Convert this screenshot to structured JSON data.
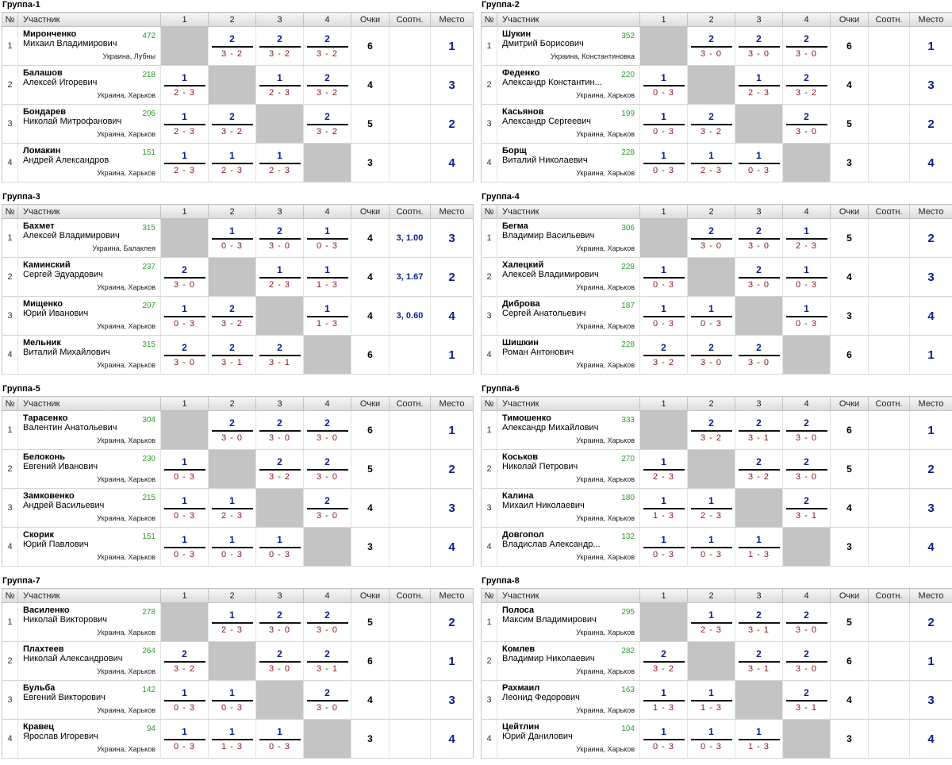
{
  "headers": {
    "num": "№",
    "player": "Участник",
    "c1": "1",
    "c2": "2",
    "c3": "3",
    "c4": "4",
    "points": "Очки",
    "ratio": "Соотн.",
    "place": "Место"
  },
  "groups": [
    {
      "title": "Группа-1",
      "rows": [
        {
          "num": "1",
          "name": "Мирonченко",
          "first": "Михаил Владимирович",
          "rating": "472",
          "city": "Украина, Лубны",
          "scores": [
            null,
            {
              "w": "2",
              "s": "3 - 2"
            },
            {
              "w": "2",
              "s": "3 - 2"
            },
            {
              "w": "2",
              "s": "3 - 2"
            }
          ],
          "points": "6",
          "ratio": "",
          "place": "1"
        },
        {
          "num": "2",
          "name": "Балашов",
          "first": "Алексей Игоревич",
          "rating": "218",
          "city": "Украина, Харьков",
          "scores": [
            {
              "w": "1",
              "s": "2 - 3"
            },
            null,
            {
              "w": "1",
              "s": "2 - 3"
            },
            {
              "w": "2",
              "s": "3 - 2"
            }
          ],
          "points": "4",
          "ratio": "",
          "place": "3"
        },
        {
          "num": "3",
          "name": "Бондарев",
          "first": "Николай Митрофанович",
          "rating": "206",
          "city": "Украина, Харьков",
          "scores": [
            {
              "w": "1",
              "s": "2 - 3"
            },
            {
              "w": "2",
              "s": "3 - 2"
            },
            null,
            {
              "w": "2",
              "s": "3 - 2"
            }
          ],
          "points": "5",
          "ratio": "",
          "place": "2"
        },
        {
          "num": "4",
          "name": "Ломакин",
          "first": "Андрей Александров",
          "rating": "151",
          "city": "Украина, Харьков",
          "scores": [
            {
              "w": "1",
              "s": "2 - 3"
            },
            {
              "w": "1",
              "s": "2 - 3"
            },
            {
              "w": "1",
              "s": "2 - 3"
            },
            null
          ],
          "points": "3",
          "ratio": "",
          "place": "4"
        }
      ]
    },
    {
      "title": "Группа-2",
      "rows": [
        {
          "num": "1",
          "name": "Шукин",
          "first": "Дмитрий Борисович",
          "rating": "352",
          "city": "Украина, Константиновка",
          "scores": [
            null,
            {
              "w": "2",
              "s": "3 - 0"
            },
            {
              "w": "2",
              "s": "3 - 0"
            },
            {
              "w": "2",
              "s": "3 - 0"
            }
          ],
          "points": "6",
          "ratio": "",
          "place": "1"
        },
        {
          "num": "2",
          "name": "Феденко",
          "first": "Александр Константин...",
          "rating": "220",
          "city": "Украина, Харьков",
          "scores": [
            {
              "w": "1",
              "s": "0 - 3"
            },
            null,
            {
              "w": "1",
              "s": "2 - 3"
            },
            {
              "w": "2",
              "s": "3 - 2"
            }
          ],
          "points": "4",
          "ratio": "",
          "place": "3"
        },
        {
          "num": "3",
          "name": "Касьянов",
          "first": "Александр Сергеевич",
          "rating": "199",
          "city": "Украина, Харьков",
          "scores": [
            {
              "w": "1",
              "s": "0 - 3"
            },
            {
              "w": "2",
              "s": "3 - 2"
            },
            null,
            {
              "w": "2",
              "s": "3 - 0"
            }
          ],
          "points": "5",
          "ratio": "",
          "place": "2"
        },
        {
          "num": "4",
          "name": "Борщ",
          "first": "Виталий Николаевич",
          "rating": "228",
          "city": "Украина, Харьков",
          "scores": [
            {
              "w": "1",
              "s": "0 - 3"
            },
            {
              "w": "1",
              "s": "2 - 3"
            },
            {
              "w": "1",
              "s": "0 - 3"
            },
            null
          ],
          "points": "3",
          "ratio": "",
          "place": "4"
        }
      ]
    },
    {
      "title": "Группа-3",
      "rows": [
        {
          "num": "1",
          "name": "Бахмет",
          "first": "Алексей Владимирович",
          "rating": "315",
          "city": "Украина, Балаклея",
          "scores": [
            null,
            {
              "w": "1",
              "s": "0 - 3"
            },
            {
              "w": "2",
              "s": "3 - 0"
            },
            {
              "w": "1",
              "s": "0 - 3"
            }
          ],
          "points": "4",
          "ratio": "3, 1.00",
          "place": "3"
        },
        {
          "num": "2",
          "name": "Каминский",
          "first": "Сергей Эдуардович",
          "rating": "237",
          "city": "Украина, Харьков",
          "scores": [
            {
              "w": "2",
              "s": "3 - 0"
            },
            null,
            {
              "w": "1",
              "s": "2 - 3"
            },
            {
              "w": "1",
              "s": "1 - 3"
            }
          ],
          "points": "4",
          "ratio": "3, 1.67",
          "place": "2"
        },
        {
          "num": "3",
          "name": "Мищенко",
          "first": "Юрий Иванович",
          "rating": "207",
          "city": "Украина, Харьков",
          "scores": [
            {
              "w": "1",
              "s": "0 - 3"
            },
            {
              "w": "2",
              "s": "3 - 2"
            },
            null,
            {
              "w": "1",
              "s": "1 - 3"
            }
          ],
          "points": "4",
          "ratio": "3, 0.60",
          "place": "4"
        },
        {
          "num": "4",
          "name": "Мельник",
          "first": "Виталий Михайлович",
          "rating": "315",
          "city": "Украина, Харьков",
          "scores": [
            {
              "w": "2",
              "s": "3 - 0"
            },
            {
              "w": "2",
              "s": "3 - 1"
            },
            {
              "w": "2",
              "s": "3 - 1"
            },
            null
          ],
          "points": "6",
          "ratio": "",
          "place": "1"
        }
      ]
    },
    {
      "title": "Группа-4",
      "rows": [
        {
          "num": "1",
          "name": "Бегма",
          "first": "Владимир Васильевич",
          "rating": "306",
          "city": "Украина, Харьков",
          "scores": [
            null,
            {
              "w": "2",
              "s": "3 - 0"
            },
            {
              "w": "2",
              "s": "3 - 0"
            },
            {
              "w": "1",
              "s": "2 - 3"
            }
          ],
          "points": "5",
          "ratio": "",
          "place": "2"
        },
        {
          "num": "2",
          "name": "Халецкий",
          "first": "Алексей Владимирович",
          "rating": "228",
          "city": "Украина, Харьков",
          "scores": [
            {
              "w": "1",
              "s": "0 - 3"
            },
            null,
            {
              "w": "2",
              "s": "3 - 0"
            },
            {
              "w": "1",
              "s": "0 - 3"
            }
          ],
          "points": "4",
          "ratio": "",
          "place": "3"
        },
        {
          "num": "3",
          "name": "Диброва",
          "first": "Сергей Анатольевич",
          "rating": "187",
          "city": "Украина, Харьков",
          "scores": [
            {
              "w": "1",
              "s": "0 - 3"
            },
            {
              "w": "1",
              "s": "0 - 3"
            },
            null,
            {
              "w": "1",
              "s": "0 - 3"
            }
          ],
          "points": "3",
          "ratio": "",
          "place": "4"
        },
        {
          "num": "4",
          "name": "Шишкин",
          "first": "Роман Антонович",
          "rating": "228",
          "city": "Украина, Харьков",
          "scores": [
            {
              "w": "2",
              "s": "3 - 2"
            },
            {
              "w": "2",
              "s": "3 - 0"
            },
            {
              "w": "2",
              "s": "3 - 0"
            },
            null
          ],
          "points": "6",
          "ratio": "",
          "place": "1"
        }
      ]
    },
    {
      "title": "Группа-5",
      "rows": [
        {
          "num": "1",
          "name": "Тарасенко",
          "first": "Валентин Анатольевич",
          "rating": "304",
          "city": "Украина, Харьков",
          "scores": [
            null,
            {
              "w": "2",
              "s": "3 - 0"
            },
            {
              "w": "2",
              "s": "3 - 0"
            },
            {
              "w": "2",
              "s": "3 - 0"
            }
          ],
          "points": "6",
          "ratio": "",
          "place": "1"
        },
        {
          "num": "2",
          "name": "Белоконь",
          "first": "Евгений Иванович",
          "rating": "230",
          "city": "Украина, Харьков",
          "scores": [
            {
              "w": "1",
              "s": "0 - 3"
            },
            null,
            {
              "w": "2",
              "s": "3 - 2"
            },
            {
              "w": "2",
              "s": "3 - 0"
            }
          ],
          "points": "5",
          "ratio": "",
          "place": "2"
        },
        {
          "num": "3",
          "name": "Замковенко",
          "first": "Андрей Васильевич",
          "rating": "215",
          "city": "Украина, Харьков",
          "scores": [
            {
              "w": "1",
              "s": "0 - 3"
            },
            {
              "w": "1",
              "s": "2 - 3"
            },
            null,
            {
              "w": "2",
              "s": "3 - 0"
            }
          ],
          "points": "4",
          "ratio": "",
          "place": "3"
        },
        {
          "num": "4",
          "name": "Скорик",
          "first": "Юрий Павлович",
          "rating": "151",
          "city": "Украина, Харьков",
          "scores": [
            {
              "w": "1",
              "s": "0 - 3"
            },
            {
              "w": "1",
              "s": "0 - 3"
            },
            {
              "w": "1",
              "s": "0 - 3"
            },
            null
          ],
          "points": "3",
          "ratio": "",
          "place": "4"
        }
      ]
    },
    {
      "title": "Группа-6",
      "rows": [
        {
          "num": "1",
          "name": "Тимошенко",
          "first": "Александр Михайлович",
          "rating": "333",
          "city": "Украина, Харьков",
          "scores": [
            null,
            {
              "w": "2",
              "s": "3 - 2"
            },
            {
              "w": "2",
              "s": "3 - 1"
            },
            {
              "w": "2",
              "s": "3 - 0"
            }
          ],
          "points": "6",
          "ratio": "",
          "place": "1"
        },
        {
          "num": "2",
          "name": "Коськов",
          "first": "Николай Петрович",
          "rating": "270",
          "city": "Украина, Харьков",
          "scores": [
            {
              "w": "1",
              "s": "2 - 3"
            },
            null,
            {
              "w": "2",
              "s": "3 - 2"
            },
            {
              "w": "2",
              "s": "3 - 0"
            }
          ],
          "points": "5",
          "ratio": "",
          "place": "2"
        },
        {
          "num": "3",
          "name": "Калина",
          "first": "Михаил Николаевич",
          "rating": "180",
          "city": "Украина, Харьков",
          "scores": [
            {
              "w": "1",
              "s": "1 - 3"
            },
            {
              "w": "1",
              "s": "2 - 3"
            },
            null,
            {
              "w": "2",
              "s": "3 - 1"
            }
          ],
          "points": "4",
          "ratio": "",
          "place": "3"
        },
        {
          "num": "4",
          "name": "Довгопол",
          "first": "Владислав Александр...",
          "rating": "132",
          "city": "Украина, Харьков",
          "scores": [
            {
              "w": "1",
              "s": "0 - 3"
            },
            {
              "w": "1",
              "s": "0 - 3"
            },
            {
              "w": "1",
              "s": "1 - 3"
            },
            null
          ],
          "points": "3",
          "ratio": "",
          "place": "4"
        }
      ]
    },
    {
      "title": "Группа-7",
      "rows": [
        {
          "num": "1",
          "name": "Василенко",
          "first": "Николай Викторович",
          "rating": "278",
          "city": "Украина, Харьков",
          "scores": [
            null,
            {
              "w": "1",
              "s": "2 - 3"
            },
            {
              "w": "2",
              "s": "3 - 0"
            },
            {
              "w": "2",
              "s": "3 - 0"
            }
          ],
          "points": "5",
          "ratio": "",
          "place": "2"
        },
        {
          "num": "2",
          "name": "Плахтеев",
          "first": "Николай Александрович",
          "rating": "264",
          "city": "Украина, Харьков",
          "scores": [
            {
              "w": "2",
              "s": "3 - 2"
            },
            null,
            {
              "w": "2",
              "s": "3 - 0"
            },
            {
              "w": "2",
              "s": "3 - 1"
            }
          ],
          "points": "6",
          "ratio": "",
          "place": "1"
        },
        {
          "num": "3",
          "name": "Бульба",
          "first": "Евгений Викторович",
          "rating": "142",
          "city": "Украина, Харьков",
          "scores": [
            {
              "w": "1",
              "s": "0 - 3"
            },
            {
              "w": "1",
              "s": "0 - 3"
            },
            null,
            {
              "w": "2",
              "s": "3 - 0"
            }
          ],
          "points": "4",
          "ratio": "",
          "place": "3"
        },
        {
          "num": "4",
          "name": "Кравец",
          "first": "Ярослав Игоревич",
          "rating": "94",
          "city": "Украина, Харьков",
          "scores": [
            {
              "w": "1",
              "s": "0 - 3"
            },
            {
              "w": "1",
              "s": "1 - 3"
            },
            {
              "w": "1",
              "s": "0 - 3"
            },
            null
          ],
          "points": "3",
          "ratio": "",
          "place": "4"
        }
      ]
    },
    {
      "title": "Группа-8",
      "rows": [
        {
          "num": "1",
          "name": "Полоса",
          "first": "Максим Владимирович",
          "rating": "295",
          "city": "Украина, Харьков",
          "scores": [
            null,
            {
              "w": "1",
              "s": "2 - 3"
            },
            {
              "w": "2",
              "s": "3 - 1"
            },
            {
              "w": "2",
              "s": "3 - 0"
            }
          ],
          "points": "5",
          "ratio": "",
          "place": "2"
        },
        {
          "num": "2",
          "name": "Комлев",
          "first": "Владимир Николаевич",
          "rating": "282",
          "city": "Украина, Харьков",
          "scores": [
            {
              "w": "2",
              "s": "3 - 2"
            },
            null,
            {
              "w": "2",
              "s": "3 - 1"
            },
            {
              "w": "2",
              "s": "3 - 0"
            }
          ],
          "points": "6",
          "ratio": "",
          "place": "1"
        },
        {
          "num": "3",
          "name": "Рахмаил",
          "first": "Леонид Федорович",
          "rating": "163",
          "city": "Украина, Харьков",
          "scores": [
            {
              "w": "1",
              "s": "1 - 3"
            },
            {
              "w": "1",
              "s": "1 - 3"
            },
            null,
            {
              "w": "2",
              "s": "3 - 1"
            }
          ],
          "points": "4",
          "ratio": "",
          "place": "3"
        },
        {
          "num": "4",
          "name": "Цейтлин",
          "first": "Юрий Данилович",
          "rating": "104",
          "city": "Украина, Харьков",
          "scores": [
            {
              "w": "1",
              "s": "0 - 3"
            },
            {
              "w": "1",
              "s": "0 - 3"
            },
            {
              "w": "1",
              "s": "1 - 3"
            },
            null
          ],
          "points": "3",
          "ratio": "",
          "place": "4"
        }
      ]
    }
  ]
}
